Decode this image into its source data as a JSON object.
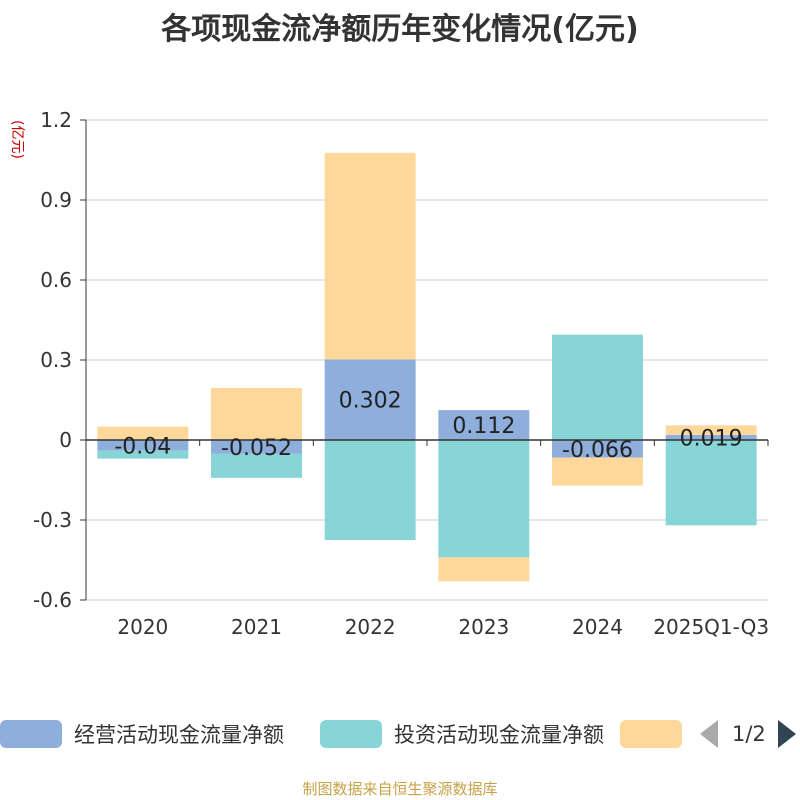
{
  "chart_data": {
    "type": "bar",
    "stacked": true,
    "title": "各项现金流净额历年变化情况(亿元)",
    "ylabel": "(亿元)",
    "categories": [
      "2020",
      "2021",
      "2022",
      "2023",
      "2024",
      "2025Q1-Q3"
    ],
    "ylim": [
      -0.6,
      1.2
    ],
    "yticks": [
      "1.2",
      "0.9",
      "0.6",
      "0.3",
      "0",
      "-0.3",
      "-0.6"
    ],
    "yticks_values": [
      1.2,
      0.9,
      0.6,
      0.3,
      0,
      -0.3,
      -0.6
    ],
    "grid": true,
    "legend_position": "bottom",
    "series": [
      {
        "name": "经营活动现金流量净额",
        "color": "#8eaedb",
        "values": [
          -0.04,
          -0.052,
          0.302,
          0.112,
          -0.066,
          0.019
        ],
        "labels": [
          "-0.04",
          "-0.052",
          "0.302",
          "0.112",
          "-0.066",
          "0.019"
        ]
      },
      {
        "name": "投资活动现金流量净额",
        "color": "#88d5d8",
        "values": [
          -0.03,
          -0.09,
          -0.375,
          -0.44,
          0.395,
          -0.32
        ]
      },
      {
        "name": "",
        "color": "#fed89b",
        "values": [
          0.05,
          0.195,
          0.775,
          -0.09,
          -0.105,
          0.036
        ]
      }
    ]
  },
  "legend": {
    "items": [
      "经营活动现金流量净额",
      "投资活动现金流量净额",
      ""
    ],
    "page": "1/2"
  },
  "source": "制图数据来自恒生聚源数据库"
}
